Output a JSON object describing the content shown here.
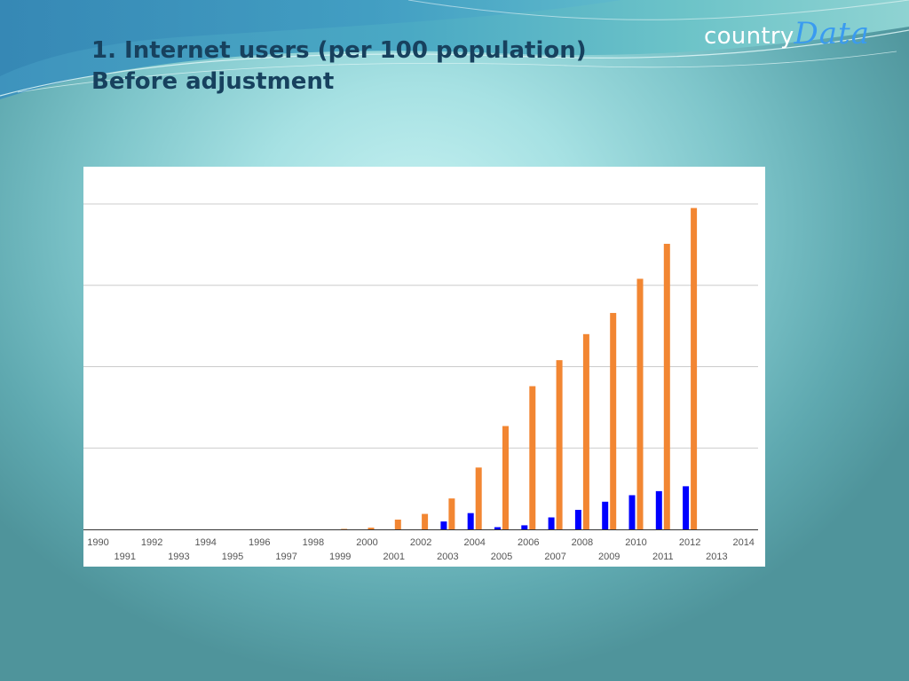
{
  "slide": {
    "title_line1": "1. Internet users (per 100 population)",
    "title_line2": "Before adjustment",
    "title_color": "#17415e"
  },
  "logo": {
    "part1": "country",
    "part2": "Data",
    "part1_color": "#ffffff",
    "part2_color": "#3a9bf0"
  },
  "chart_data": {
    "type": "bar",
    "title": "",
    "xlabel": "",
    "ylabel": "",
    "categories": [
      "1990",
      "1991",
      "1992",
      "1993",
      "1994",
      "1995",
      "1996",
      "1997",
      "1998",
      "1999",
      "2000",
      "2001",
      "2002",
      "2003",
      "2004",
      "2005",
      "2006",
      "2007",
      "2008",
      "2009",
      "2010",
      "2011",
      "2012",
      "2013",
      "2014"
    ],
    "series": [
      {
        "color": "#0000ff",
        "values": [
          0,
          0,
          0,
          0,
          0,
          0,
          0,
          0,
          0,
          0,
          0,
          0,
          0,
          0.97,
          2.0,
          0.27,
          0.5,
          1.47,
          2.4,
          3.4,
          4.2,
          4.7,
          5.3,
          0,
          0
        ]
      },
      {
        "color": "#f28632",
        "values": [
          0,
          0,
          0,
          0,
          0,
          0,
          0,
          0,
          0,
          0.06,
          0.21,
          1.2,
          1.9,
          3.8,
          7.6,
          12.7,
          17.6,
          20.8,
          24.0,
          26.6,
          30.8,
          35.1,
          39.5,
          0,
          0
        ]
      }
    ],
    "ylim": [
      0,
      40
    ],
    "grid": true,
    "legend": "none",
    "x_tick_rows": {
      "top": [
        "1990",
        "1992",
        "1994",
        "1996",
        "1998",
        "2000",
        "2002",
        "2004",
        "2006",
        "2008",
        "2010",
        "2012",
        "2014"
      ],
      "bottom": [
        "1991",
        "1993",
        "1995",
        "1997",
        "1999",
        "2001",
        "2003",
        "2005",
        "2007",
        "2009",
        "2011",
        "2013"
      ]
    }
  }
}
